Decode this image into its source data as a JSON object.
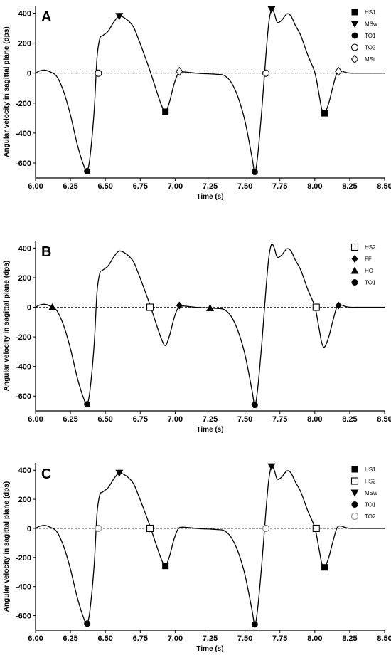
{
  "chart_data": [
    {
      "type": "line",
      "panel_label": "A",
      "xlabel": "Time (s)",
      "ylabel": "Angular velocity in sagittal plane (dps)",
      "xlim": [
        6.0,
        8.5
      ],
      "ylim": [
        -700,
        450
      ],
      "xticks": [
        "6.00",
        "6.25",
        "6.50",
        "6.75",
        "7.00",
        "7.25",
        "7.50",
        "7.75",
        "8.00",
        "8.25",
        "8.50"
      ],
      "yticks": [
        "400",
        "200",
        "0",
        "-200",
        "-400",
        "-600"
      ],
      "legend_position": "top-right",
      "legend": [
        {
          "label": "HS1",
          "marker": "square-filled"
        },
        {
          "label": "MSw",
          "marker": "triangle-down-filled"
        },
        {
          "label": "TO1",
          "marker": "circle-filled"
        },
        {
          "label": "TO2",
          "marker": "circle-open"
        },
        {
          "label": "MSt",
          "marker": "diamond-open"
        }
      ],
      "events": [
        {
          "label": "HS1",
          "points": [
            [
              6.93,
              -258
            ],
            [
              8.07,
              -268
            ]
          ]
        },
        {
          "label": "MSw",
          "points": [
            [
              6.6,
              380
            ],
            [
              7.69,
              425
            ]
          ]
        },
        {
          "label": "TO1",
          "points": [
            [
              6.37,
              -655
            ],
            [
              7.57,
              -660
            ]
          ]
        },
        {
          "label": "TO2",
          "points": [
            [
              6.45,
              0
            ],
            [
              7.65,
              0
            ]
          ]
        },
        {
          "label": "MSt",
          "points": [
            [
              7.03,
              12
            ],
            [
              8.17,
              12
            ]
          ]
        }
      ]
    },
    {
      "type": "line",
      "panel_label": "B",
      "xlabel": "Time (s)",
      "ylabel": "Angular velocity in sagittal plane (dps)",
      "xlim": [
        6.0,
        8.5
      ],
      "ylim": [
        -700,
        450
      ],
      "xticks": [
        "6.00",
        "6.25",
        "6.50",
        "6.75",
        "7.00",
        "7.25",
        "7.50",
        "7.75",
        "8.00",
        "8.25",
        "8.50"
      ],
      "yticks": [
        "400",
        "200",
        "0",
        "-200",
        "-400",
        "-600"
      ],
      "legend_position": "top-right",
      "legend": [
        {
          "label": "HS2",
          "marker": "square-open"
        },
        {
          "label": "FF",
          "marker": "diamond-filled"
        },
        {
          "label": "HO",
          "marker": "triangle-up-filled"
        },
        {
          "label": "TO1",
          "marker": "circle-filled"
        }
      ],
      "events": [
        {
          "label": "HS2",
          "points": [
            [
              6.82,
              0
            ],
            [
              8.01,
              0
            ]
          ]
        },
        {
          "label": "FF",
          "points": [
            [
              7.03,
              12
            ],
            [
              8.17,
              12
            ]
          ]
        },
        {
          "label": "HO",
          "points": [
            [
              6.12,
              0
            ],
            [
              7.25,
              -5
            ]
          ]
        },
        {
          "label": "TO1",
          "points": [
            [
              6.37,
              -655
            ],
            [
              7.57,
              -660
            ]
          ]
        }
      ]
    },
    {
      "type": "line",
      "panel_label": "C",
      "xlabel": "Time (s)",
      "ylabel": "Angular velocity in sagittal plane (dps)",
      "xlim": [
        6.0,
        8.5
      ],
      "ylim": [
        -700,
        450
      ],
      "xticks": [
        "6.00",
        "6.25",
        "6.50",
        "6.75",
        "7.00",
        "7.25",
        "7.50",
        "7.75",
        "8.00",
        "8.25",
        "8.50"
      ],
      "yticks": [
        "400",
        "200",
        "0",
        "-200",
        "-400",
        "-600"
      ],
      "legend_position": "top-right",
      "legend": [
        {
          "label": "HS1",
          "marker": "square-filled"
        },
        {
          "label": "HS2",
          "marker": "square-open"
        },
        {
          "label": "MSw",
          "marker": "triangle-down-filled"
        },
        {
          "label": "TO1",
          "marker": "circle-filled"
        },
        {
          "label": "TO2",
          "marker": "circle-open-grey"
        }
      ],
      "events": [
        {
          "label": "HS1",
          "points": [
            [
              6.93,
              -258
            ],
            [
              8.07,
              -268
            ]
          ]
        },
        {
          "label": "HS2",
          "points": [
            [
              6.82,
              0
            ],
            [
              8.01,
              0
            ]
          ]
        },
        {
          "label": "MSw",
          "points": [
            [
              6.6,
              380
            ],
            [
              7.69,
              425
            ]
          ]
        },
        {
          "label": "TO1",
          "points": [
            [
              6.37,
              -655
            ],
            [
              7.57,
              -660
            ]
          ]
        },
        {
          "label": "TO2",
          "points": [
            [
              6.45,
              0
            ],
            [
              7.65,
              0
            ]
          ]
        }
      ]
    }
  ],
  "signal": {
    "x": [
      6.0,
      6.03,
      6.07,
      6.1,
      6.15,
      6.2,
      6.25,
      6.3,
      6.35,
      6.37,
      6.39,
      6.42,
      6.44,
      6.46,
      6.48,
      6.52,
      6.56,
      6.6,
      6.65,
      6.7,
      6.74,
      6.78,
      6.82,
      6.86,
      6.9,
      6.93,
      6.96,
      6.99,
      7.02,
      7.05,
      7.1,
      7.15,
      7.2,
      7.25,
      7.3,
      7.35,
      7.4,
      7.45,
      7.5,
      7.55,
      7.57,
      7.59,
      7.62,
      7.65,
      7.67,
      7.69,
      7.71,
      7.73,
      7.76,
      7.8,
      7.83,
      7.86,
      7.9,
      7.95,
      8.0,
      8.03,
      8.05,
      8.07,
      8.1,
      8.13,
      8.16,
      8.19,
      8.22,
      8.26,
      8.3,
      8.35,
      8.4,
      8.45,
      8.5
    ],
    "y": [
      0,
      15,
      20,
      10,
      -20,
      -120,
      -280,
      -480,
      -630,
      -655,
      -560,
      -250,
      100,
      230,
      250,
      280,
      340,
      380,
      360,
      310,
      220,
      120,
      15,
      -100,
      -210,
      -258,
      -190,
      -80,
      -5,
      8,
      5,
      0,
      -3,
      -5,
      -8,
      -15,
      -60,
      -160,
      -320,
      -560,
      -660,
      -560,
      -250,
      120,
      330,
      425,
      400,
      340,
      350,
      395,
      380,
      320,
      250,
      120,
      5,
      -140,
      -240,
      -268,
      -200,
      -90,
      5,
      15,
      5,
      0,
      0,
      0,
      0,
      0,
      0
    ]
  }
}
